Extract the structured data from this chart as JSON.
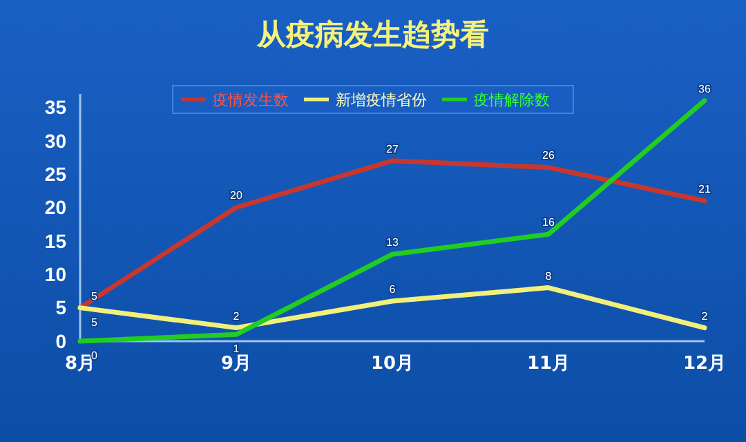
{
  "chart_data": {
    "type": "line",
    "title": "从疫病发生趋势看",
    "categories": [
      "8月",
      "9月",
      "10月",
      "11月",
      "12月"
    ],
    "series": [
      {
        "name": "疫情发生数",
        "color": "#c8372d",
        "values": [
          5,
          20,
          27,
          26,
          21
        ]
      },
      {
        "name": "新增疫情省份",
        "color": "#f2f07a",
        "values": [
          5,
          2,
          6,
          8,
          2
        ]
      },
      {
        "name": "疫情解除数",
        "color": "#22cc22",
        "values": [
          0,
          1,
          13,
          16,
          36
        ]
      }
    ],
    "ylim": [
      0,
      37
    ],
    "yticks": [
      0,
      5,
      10,
      15,
      20,
      25,
      30,
      35
    ],
    "data_labels": true,
    "legend": "top",
    "grid": false,
    "marker": "none",
    "line_style": "solid"
  }
}
